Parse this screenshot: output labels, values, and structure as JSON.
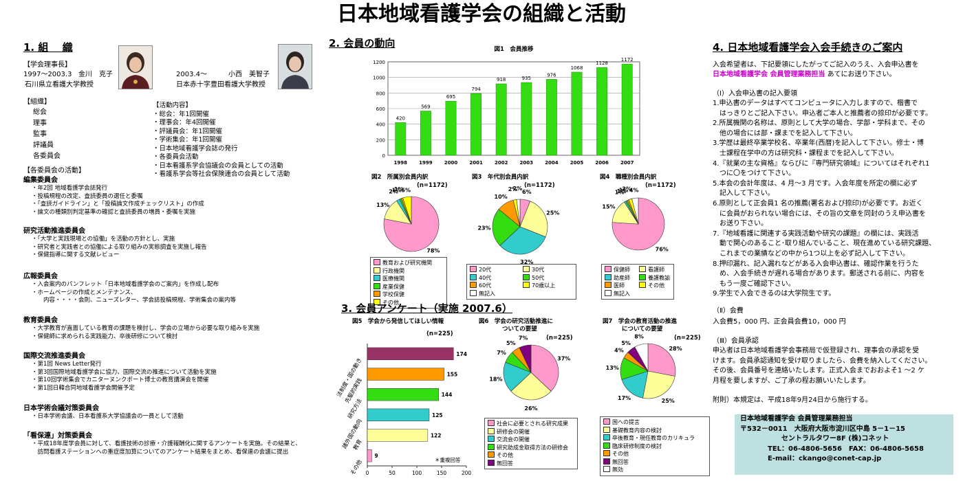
{
  "title": "日本地域看護学会の組織と活動",
  "colors": {
    "green": "#33dd11",
    "pink": "#ff99cc",
    "yellow": "#ffff99",
    "teal": "#33cccc",
    "orange": "#ff9900",
    "navy": "#000080",
    "magenta": "#cc00cc",
    "red": "#ff0000",
    "lightblue": "#99ccff",
    "maroon": "#993366",
    "lightgreen": "#ccffcc",
    "white": "#ffffff",
    "purple": "#800080",
    "darkblue": "#3366cc"
  },
  "s1": {
    "heading": "1. 組　 織",
    "chair_label": "【学会理事長】",
    "chair1_term": "1997～2003.3",
    "chair1_name": "金川　克子",
    "chair1_aff": "石川県立看護大学教授",
    "chair2_term": "2003.4～",
    "chair2_name": "小西　美智子",
    "chair2_aff": "日本赤十字豊田看護大学教授",
    "org_label": "【組織】",
    "org_items": [
      "総会",
      "理事",
      "監事",
      "評議員",
      "各委員会"
    ],
    "act_label": "【活動内容】",
    "act_items": [
      "・総会：年1回開催",
      "・理事会：年4回開催",
      "・評議員会：年1回開催",
      "・学術集会：年1回開催",
      "・日本地域看護学会誌の発行",
      "・各委員会活動",
      "・日本看護系学会協議会の会員としての活動",
      "・看護系学会等社会保険連合の会員として活動"
    ],
    "committee_label": "【各委員会の活動】",
    "committees": [
      {
        "name": "編集委員会",
        "items": [
          "・年2回 地域看護学会誌発行",
          "・投稿規程の改定、査読委員の選任と委嘱",
          "・「査読ガイドライン」と「投稿論文作成チェックリスト」の作成",
          "・論文の種類別判定基準の確認と査読委員の増員・委嘱を実施"
        ]
      },
      {
        "name": "研究活動推進委員会",
        "items": [
          "・「大学と実践現場との協働」を活動の方針とし、実施",
          "・研究者と実践者との協働による取り組みの実態調査を実施し報告",
          "・保健指導に関する文献レビュー"
        ]
      },
      {
        "name": "広報委員会",
        "items": [
          "・入会案内のパンフレット「日本地域看護学会のご案内」を作成し配布",
          "・ホームページの作成とメンテナンス、",
          "　　内容・・・・会則、ニューズレター、学会誌投稿規程、学術集会の案内等"
        ]
      },
      {
        "name": "教育委員会",
        "items": [
          "・大学教育が直面している教育の課題を検討し、学会の立場から必要な取り組みを実施",
          "・保健師に求められる実践能力、卒後研修について検討"
        ]
      },
      {
        "name": "国際交流推進委員会",
        "items": [
          "・第1回 News Letter発行",
          "・第3回国際地域看護学会に協力、国際交流の推進について活動を実施",
          "・第10回学術集会でカニターヌンクポート博士の教育講演会を開催",
          "・第1回日韓合同地域看護学会開催予定"
        ]
      },
      {
        "name": "日本学術会議対策委員会",
        "items": [
          "・日本学術会議、日本看護系大学協議会の一員として活動"
        ]
      },
      {
        "name": "「看保連」対策委員会",
        "items": [
          "・平成18年度学会員に対して、看護技術の診療・介護報酬化に関するアンケートを実施。その結果と、",
          "　訪問看護ステーションへの重症度加算についてのアンケート結果をまとめ、看保連の会議に提出"
        ]
      }
    ]
  },
  "s2": {
    "heading": "2. 会員の動向"
  },
  "s3": {
    "heading": "3. 会員アンケート（実施 2007.6）"
  },
  "s4": {
    "heading": "4. 日本地域看護学会入会手続きのご案内",
    "intro1": "入会希望者は、下記要領にしたがってご記入のうえ、入会申込書を",
    "intro2_highlight": "日本地域看護学会 会員管理業務担当",
    "intro2_rest": " あてにお送り下さい。",
    "sec1_label": "（Ⅰ）入会申込書の記入要領",
    "sec1_lines": [
      "1.申込書のデータはすべてコンピュータに入力しますので、楷書で",
      "　はっきりとご記入下さい。申込者ご本人と推薦者の捺印が必要です。",
      "2.所属機関の名称は、原則として大学の場合、学部・学科まで、その",
      "　他の場合には部・課までを記入して下さい。",
      "3.学歴は最終卒業学校名、卒業年(西暦)を記入して下さい。修士・博",
      "　士課程在学中の方は研究科・課程までを記入して下さい。",
      "4.『就業の主な資格』ならびに『専門研究領域』についてはそれぞれ1",
      "　つに〇をつけて下さい。",
      "5.本会の会計年度は、4 月～3 月です。入会年度を所定の欄に必ず",
      "　記入して下さい。",
      "6.原則として正会員1 名の推薦(署名および捺印)が必要です。お近く",
      "　に会員がおられない場合には、その旨の文章を同封のうえ申込書を",
      "　お送り下さい。",
      "7.『地域看護に関連する実践活動や研究の課題』の欄には、実践活",
      "　動で関心のあること･取り組んでいること、現在進めている研究課題、",
      "　これまでの業績などの中から1つ以上を必ず記入して下さい。",
      "8.押印漏れ、記入漏れなどがある入会申込書は、確認作業を行うた",
      "　め、入会手続きが遅れる場合があります。郵送される前に、内容を",
      "　もう一度ご確認下さい。",
      "9.学生で入会できるのは大学院生です。"
    ],
    "sec2_label": "（Ⅱ）会費",
    "sec2_text": " 入会費5，000 円、正会員会費10，000 円",
    "sec3_label": "（Ⅲ）会員承認",
    "sec3_lines": [
      "申込者は日本地域看護学会事務局で仮登録され、理事会の承認を受",
      "けます。会員承認通知を受け取りましたら、会費を納入してください。",
      "その後、会員番号を連絡いたします。正式入会までおおよそ1 ～2 ケ",
      "月程を要しますが、ご了承の程お願いいたします。"
    ],
    "addendum": "附則）本規定は、平成18年9月24日から施行する。",
    "contact": [
      "日本地域看護学会 会員管理業務担当",
      "〒532－0011　大阪府大阪市淀川区中島 5－1－15",
      "　　　　　　セントラルタワー8F (株)コネット",
      "　　　　TEL：06-4806-5656　FAX：06-4806-5658",
      "　　　　E-mail：ckango@conet-cap.jp"
    ]
  },
  "chart_data": [
    {
      "id": "fig1",
      "type": "bar",
      "title": "図1　会員推移",
      "categories": [
        "1998",
        "1999",
        "2000",
        "2001",
        "2002",
        "2003",
        "2004",
        "2005",
        "2006",
        "2007"
      ],
      "values": [
        420,
        569,
        695,
        794,
        918,
        935,
        976,
        1068,
        1128,
        1172
      ],
      "yticks": [
        0,
        200,
        400,
        600,
        800,
        1000,
        1200
      ],
      "ylim": [
        0,
        1200
      ],
      "grid": true,
      "color": "#33dd11"
    },
    {
      "id": "fig2",
      "type": "pie",
      "title": "図2　所属別会員内訳",
      "n": "(n=1172)",
      "labels": [
        "教育および研究機関",
        "行政機関",
        "医療機関",
        "産業保健",
        "学校保健",
        "その他"
      ],
      "values": [
        78,
        13,
        2,
        1,
        1,
        5
      ],
      "value_labels": [
        "78%",
        "13%",
        "2%",
        "1%",
        "1%",
        "5%"
      ],
      "colors": [
        "#ff99cc",
        "#ffff99",
        "#33cccc",
        "#33dd11",
        "#ff9900",
        "#ffff00"
      ]
    },
    {
      "id": "fig3",
      "type": "pie",
      "title": "図3　年代別会員内訳",
      "n": "(n=1172)",
      "labels": [
        "20代",
        "30代",
        "40代",
        "50代",
        "60代",
        "70歳以上",
        "無記入"
      ],
      "values": [
        6,
        25,
        32,
        23,
        10,
        2,
        2
      ],
      "value_labels": [
        "6%",
        "25%",
        "32%",
        "23%",
        "10%",
        "2%",
        "2%"
      ],
      "colors": [
        "#ff99cc",
        "#ffff99",
        "#33cccc",
        "#33dd11",
        "#ff9900",
        "#ffff00",
        "#ffffff"
      ]
    },
    {
      "id": "fig4",
      "type": "pie",
      "title": "図4　職種別会員内訳",
      "n": "(n=1172)",
      "labels": [
        "保健師",
        "看護師",
        "助産師",
        "養護教諭",
        "医師",
        "その他",
        "無記入"
      ],
      "values": [
        76,
        15,
        1,
        1,
        1,
        2,
        4
      ],
      "value_labels": [
        "76%",
        "15%",
        "1%",
        "1%",
        "1%",
        "2%",
        "4%"
      ],
      "colors": [
        "#ff99cc",
        "#ffff99",
        "#33cccc",
        "#33dd11",
        "#ff9900",
        "#ffff00",
        "#ffffff"
      ]
    },
    {
      "id": "fig5",
      "type": "bar",
      "orientation": "horizontal",
      "title": "図5　学会から発信してほしい情報",
      "n": "(n=225)",
      "categories": [
        "法制度・国の動き",
        "先駆的実践",
        "研究方法",
        "諸外国の動向",
        "教育",
        "その他"
      ],
      "values": [
        174,
        155,
        144,
        125,
        122,
        9
      ],
      "colors": [
        "#993366",
        "#ff9900",
        "#33dd11",
        "#33cccc",
        "#ffff99",
        "#ff99cc"
      ],
      "xticks": [
        0,
        50,
        100,
        150,
        200
      ],
      "xlim": [
        0,
        200
      ],
      "note": "＊重複回答"
    },
    {
      "id": "fig6",
      "type": "pie",
      "title": "図6　学会の研究活動推進に",
      "title2": "ついての要望",
      "n": "(n=225)",
      "labels": [
        "社会に必要とされる研究成果",
        "研修会の開催",
        "交流会の開催",
        "研究助成金取得方法の研修会",
        "その他",
        "無回答"
      ],
      "values": [
        37,
        26,
        18,
        7,
        5,
        7
      ],
      "value_labels": [
        "37%",
        "26%",
        "18%",
        "7%",
        "5%",
        "7%"
      ],
      "colors": [
        "#ff99cc",
        "#ffff99",
        "#33cccc",
        "#33dd11",
        "#ff9900",
        "#800080"
      ]
    },
    {
      "id": "fig7",
      "type": "pie",
      "title": "図7　学会の教育活動の推進",
      "title2": "についての要望",
      "n": "(n=225)",
      "labels": [
        "国への提言",
        "基礎教育内容の検討",
        "卒後教育・現任教育のカリキュラ",
        "臨床研修制度の検討",
        "その他",
        "無回答",
        "無効"
      ],
      "values": [
        28,
        25,
        17,
        13,
        4,
        5,
        8
      ],
      "value_labels": [
        "28%",
        "25%",
        "17%",
        "13%",
        "4%",
        "5%",
        "8%"
      ],
      "colors": [
        "#ff99cc",
        "#ffff99",
        "#33cccc",
        "#33dd11",
        "#ff9900",
        "#800080",
        "#ffffff"
      ]
    }
  ]
}
